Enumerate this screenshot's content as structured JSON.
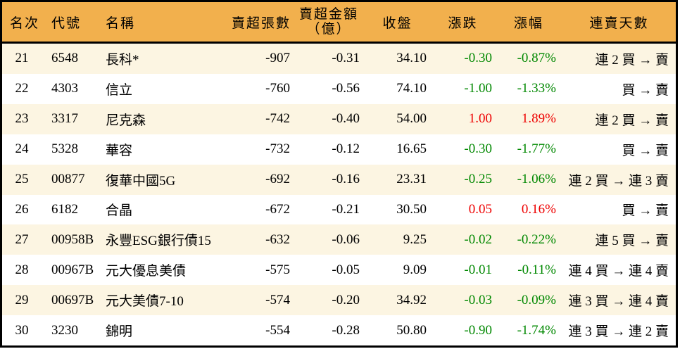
{
  "colors": {
    "header_bg": "#F2B04D",
    "row_alt_bg": "#FCF5E2",
    "row_bg": "#FFFFFF",
    "border": "#000000",
    "text": "#000000",
    "up_red": "#EE0000",
    "down_green": "#008800"
  },
  "table": {
    "columns": [
      {
        "key": "rank",
        "label": "名次"
      },
      {
        "key": "code",
        "label": "代號"
      },
      {
        "key": "name",
        "label": "名稱"
      },
      {
        "key": "sell_volume",
        "label": "賣超張數"
      },
      {
        "key": "sell_amount",
        "label": "賣超金額",
        "label2": "（億）"
      },
      {
        "key": "close",
        "label": "收盤"
      },
      {
        "key": "change",
        "label": "漲跌"
      },
      {
        "key": "change_pct",
        "label": "漲幅"
      },
      {
        "key": "streak",
        "label": "連賣天數"
      }
    ],
    "rows": [
      {
        "rank": "21",
        "code": "6548",
        "name": "長科*",
        "sell_volume": "-907",
        "sell_amount": "-0.31",
        "close": "34.10",
        "change": "-0.30",
        "change_pct": "-0.87%",
        "trend": "down",
        "streak": "連 2 買 → 賣"
      },
      {
        "rank": "22",
        "code": "4303",
        "name": "信立",
        "sell_volume": "-760",
        "sell_amount": "-0.56",
        "close": "74.10",
        "change": "-1.00",
        "change_pct": "-1.33%",
        "trend": "down",
        "streak": "買 → 賣"
      },
      {
        "rank": "23",
        "code": "3317",
        "name": "尼克森",
        "sell_volume": "-742",
        "sell_amount": "-0.40",
        "close": "54.00",
        "change": "1.00",
        "change_pct": "1.89%",
        "trend": "up",
        "streak": "連 2 買 → 賣"
      },
      {
        "rank": "24",
        "code": "5328",
        "name": "華容",
        "sell_volume": "-732",
        "sell_amount": "-0.12",
        "close": "16.65",
        "change": "-0.30",
        "change_pct": "-1.77%",
        "trend": "down",
        "streak": "買 → 賣"
      },
      {
        "rank": "25",
        "code": "00877",
        "name": "復華中國5G",
        "sell_volume": "-692",
        "sell_amount": "-0.16",
        "close": "23.31",
        "change": "-0.25",
        "change_pct": "-1.06%",
        "trend": "down",
        "streak": "連 2 買 → 連 3 賣"
      },
      {
        "rank": "26",
        "code": "6182",
        "name": "合晶",
        "sell_volume": "-672",
        "sell_amount": "-0.21",
        "close": "30.50",
        "change": "0.05",
        "change_pct": "0.16%",
        "trend": "up",
        "streak": "買 → 賣"
      },
      {
        "rank": "27",
        "code": "00958B",
        "name": "永豐ESG銀行債15",
        "sell_volume": "-632",
        "sell_amount": "-0.06",
        "close": "9.25",
        "change": "-0.02",
        "change_pct": "-0.22%",
        "trend": "down",
        "streak": "連 5 買 → 賣"
      },
      {
        "rank": "28",
        "code": "00967B",
        "name": "元大優息美債",
        "sell_volume": "-575",
        "sell_amount": "-0.05",
        "close": "9.09",
        "change": "-0.01",
        "change_pct": "-0.11%",
        "trend": "down",
        "streak": "連 4 買 → 連 4 賣"
      },
      {
        "rank": "29",
        "code": "00697B",
        "name": "元大美債7-10",
        "sell_volume": "-574",
        "sell_amount": "-0.20",
        "close": "34.92",
        "change": "-0.03",
        "change_pct": "-0.09%",
        "trend": "down",
        "streak": "連 3 買 → 連 4 賣"
      },
      {
        "rank": "30",
        "code": "3230",
        "name": "錦明",
        "sell_volume": "-554",
        "sell_amount": "-0.28",
        "close": "50.80",
        "change": "-0.90",
        "change_pct": "-1.74%",
        "trend": "down",
        "streak": "連 3 買 → 連 2 賣"
      }
    ]
  }
}
